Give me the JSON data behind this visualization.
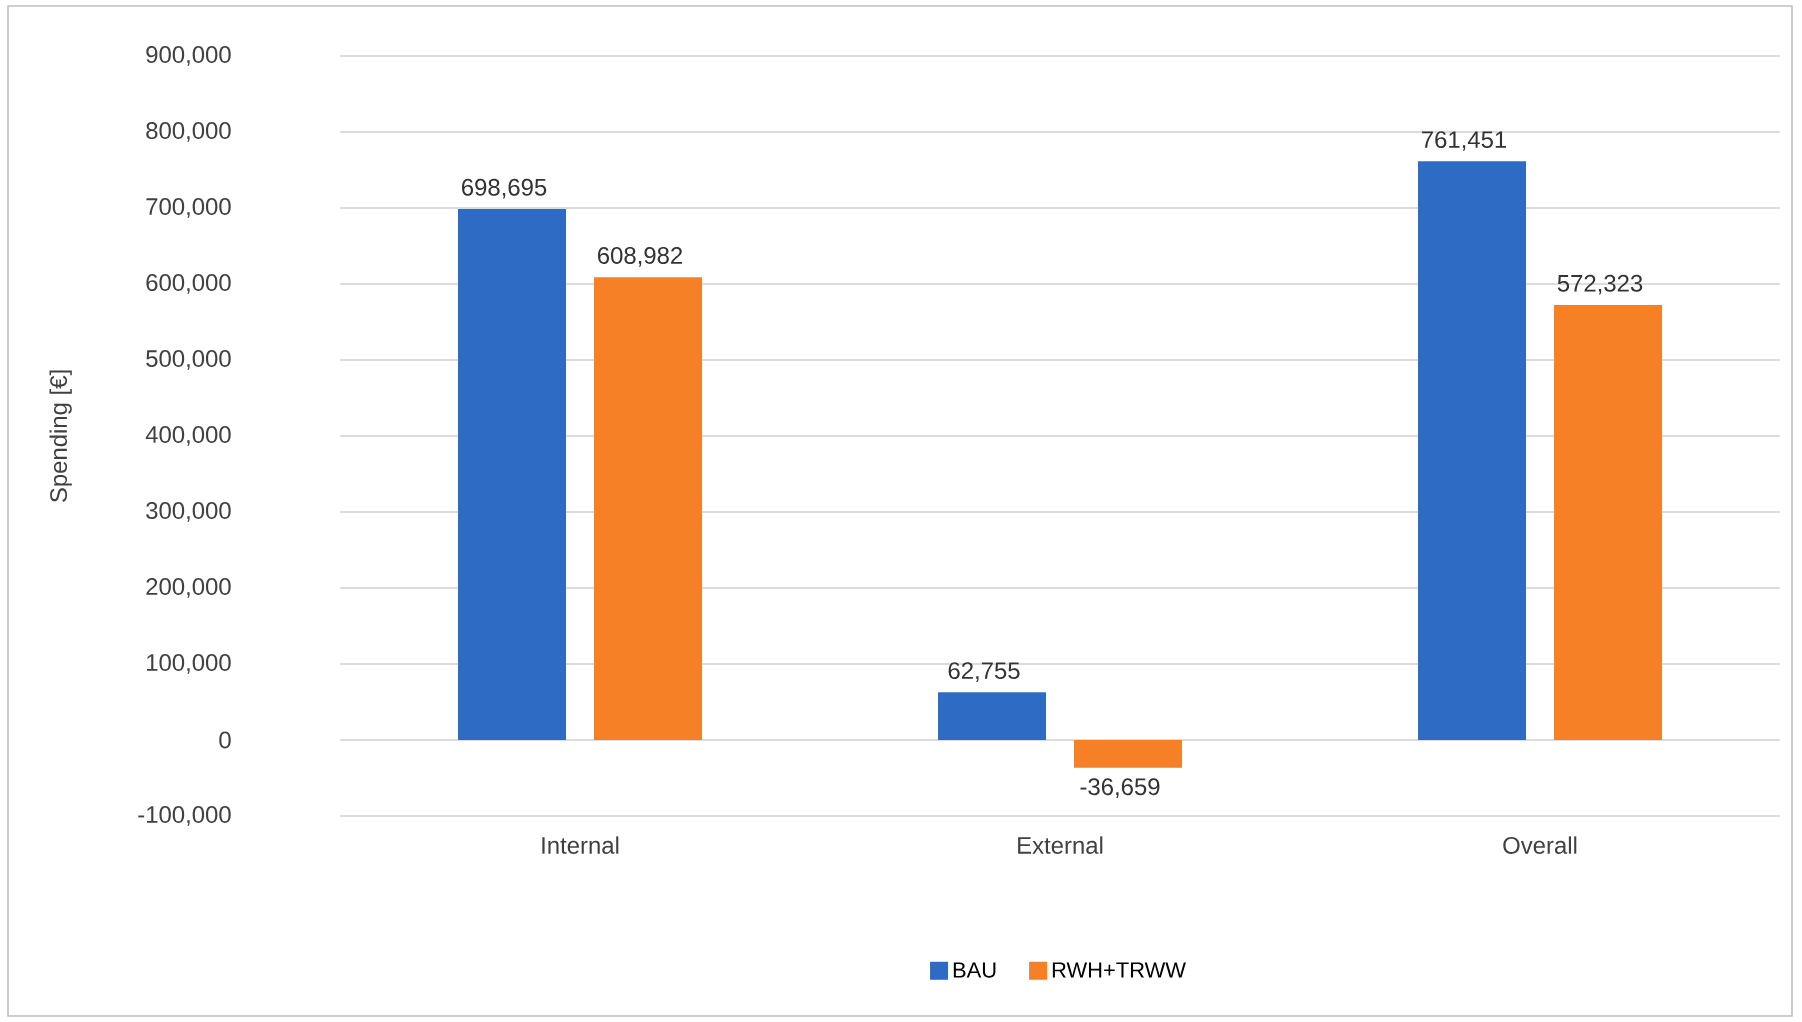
{
  "chart_data": {
    "type": "bar",
    "ylabel": "Spending [€]",
    "categories": [
      "Internal",
      "External",
      "Overall"
    ],
    "series": [
      {
        "name": "BAU",
        "color": "#2e6bc4",
        "values": [
          698695,
          62755,
          761451
        ],
        "value_labels": [
          "698,695",
          "62,755",
          "761,451"
        ]
      },
      {
        "name": "RWH+TRWW",
        "color": "#f58025",
        "values": [
          608982,
          -36659,
          572323
        ],
        "value_labels": [
          "608,982",
          "-36,659",
          "572,323"
        ]
      }
    ],
    "ylim": [
      -100000,
      900000
    ],
    "yticks": [
      {
        "value": -100000,
        "label": "-100,000"
      },
      {
        "value": 0,
        "label": "0"
      },
      {
        "value": 100000,
        "label": "100,000"
      },
      {
        "value": 200000,
        "label": "200,000"
      },
      {
        "value": 300000,
        "label": "300,000"
      },
      {
        "value": 400000,
        "label": "400,000"
      },
      {
        "value": 500000,
        "label": "500,000"
      },
      {
        "value": 600000,
        "label": "600,000"
      },
      {
        "value": 700000,
        "label": "700,000"
      },
      {
        "value": 800000,
        "label": "800,000"
      },
      {
        "value": 900000,
        "label": "900,000"
      }
    ],
    "grid": "y",
    "legend": "bottom"
  }
}
